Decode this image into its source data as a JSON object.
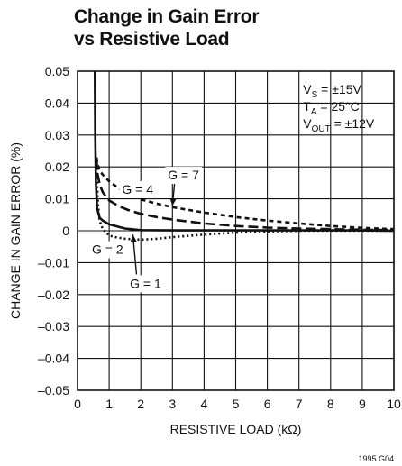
{
  "chart_data": {
    "type": "line",
    "title_lines": [
      "Change in Gain Error",
      "vs Resistive Load"
    ],
    "xlabel": "RESISTIVE LOAD (kΩ)",
    "ylabel": "CHANGE IN GAIN ERROR (%)",
    "xlim": [
      0,
      10
    ],
    "ylim": [
      -0.05,
      0.05
    ],
    "x_ticks": [
      0,
      1,
      2,
      3,
      4,
      5,
      6,
      7,
      8,
      9,
      10
    ],
    "x_tick_labels": [
      "0",
      "1",
      "2",
      "3",
      "4",
      "5",
      "6",
      "7",
      "8",
      "9",
      "10"
    ],
    "y_ticks": [
      0.05,
      0.04,
      0.03,
      0.02,
      0.01,
      0,
      -0.01,
      -0.02,
      -0.03,
      -0.04,
      -0.05
    ],
    "y_tick_labels": [
      "0.05",
      "0.04",
      "0.03",
      "0.02",
      "0.01",
      "0",
      "–0.01",
      "–0.02",
      "–0.03",
      "–0.04",
      "–0.05"
    ],
    "grid": true,
    "conditions": [
      {
        "main": "V",
        "sub": "S",
        "rest": " = ±15V"
      },
      {
        "main": "T",
        "sub": "A",
        "rest": " = 25°C"
      },
      {
        "main": "V",
        "sub": "OUT",
        "rest": " = ±12V"
      }
    ],
    "series": [
      {
        "name": "G = 1",
        "style": "solid",
        "x": [
          0.55,
          0.56,
          0.58,
          0.62,
          0.7,
          0.8,
          1.0,
          1.5,
          2.0,
          3,
          4,
          5,
          6,
          7,
          8,
          9,
          10
        ],
        "y": [
          0.05,
          0.03,
          0.015,
          0.007,
          0.004,
          0.0032,
          0.002,
          0.0007,
          0.0002,
          0.0001,
          0.0001,
          0.0001,
          0.0001,
          0.0001,
          0.0001,
          0.0001,
          0.0
        ]
      },
      {
        "name": "G = 2",
        "style": "dotted",
        "x": [
          0.6,
          0.62,
          0.65,
          0.7,
          0.8,
          1.0,
          1.2,
          1.5,
          2.0,
          2.5,
          3,
          4,
          5,
          6,
          7,
          8,
          9,
          10
        ],
        "y": [
          0.021,
          0.014,
          0.008,
          0.003,
          0.0005,
          -0.0015,
          -0.002,
          -0.0025,
          -0.0028,
          -0.0025,
          -0.002,
          -0.0012,
          -0.0006,
          -0.0002,
          0.0,
          0.0,
          0.0,
          0.0
        ]
      },
      {
        "name": "G = 4",
        "style": "dashed",
        "x": [
          0.6,
          0.63,
          0.7,
          0.8,
          1.0,
          1.3,
          1.6,
          2.0,
          2.5,
          3,
          4,
          5,
          6,
          7,
          8,
          9,
          10
        ],
        "y": [
          0.0225,
          0.018,
          0.0145,
          0.012,
          0.0095,
          0.0077,
          0.0065,
          0.0053,
          0.0043,
          0.0035,
          0.0023,
          0.0015,
          0.001,
          0.0007,
          0.0005,
          0.0003,
          0.0002
        ]
      },
      {
        "name": "G = 7",
        "style": "short-dashed",
        "x": [
          0.6,
          0.63,
          0.7,
          0.8,
          1.0,
          1.3,
          1.6,
          2.0,
          2.5,
          3,
          4,
          5,
          6,
          7,
          8,
          9,
          10
        ],
        "y": [
          0.023,
          0.021,
          0.0188,
          0.0175,
          0.0155,
          0.0133,
          0.0115,
          0.0098,
          0.0085,
          0.0074,
          0.0057,
          0.0043,
          0.0032,
          0.0023,
          0.0015,
          0.0009,
          0.0005
        ]
      }
    ],
    "annotations": [
      {
        "text": "G = 7",
        "x": 3.35,
        "y": 0.0175,
        "arrow_to_x": 3.0,
        "arrow_to_y": 0.0078
      },
      {
        "text": "G = 4",
        "x": 1.9,
        "y": 0.013
      },
      {
        "text": "G = 2",
        "x": 0.95,
        "y": -0.0058
      },
      {
        "text": "G = 1",
        "x": 2.15,
        "y": -0.0165,
        "arrow_to_x": 1.75,
        "arrow_to_y": -0.0012
      }
    ],
    "code": "1995 G04"
  }
}
